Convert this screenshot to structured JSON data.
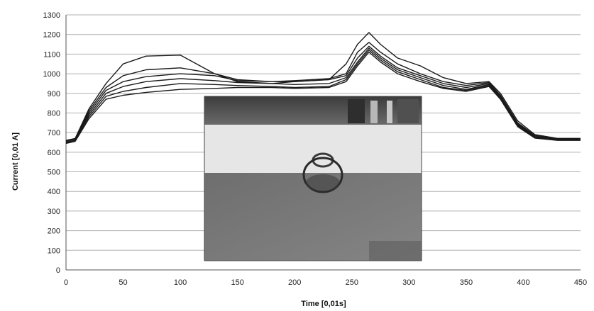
{
  "chart_data": {
    "type": "line",
    "xlabel": "Time [0,01s]",
    "ylabel": "Current [0,01 A]",
    "xlim": [
      0,
      450
    ],
    "ylim": [
      0,
      1300
    ],
    "xticks": [
      0,
      50,
      100,
      150,
      200,
      250,
      300,
      350,
      400,
      450
    ],
    "yticks": [
      0,
      100,
      200,
      300,
      400,
      500,
      600,
      700,
      800,
      900,
      1000,
      1100,
      1200,
      1300
    ],
    "grid": "horizontal",
    "legend": "none",
    "line_color": "#1a1a1a",
    "inset_image": "weld-spot-photo",
    "series": [
      {
        "x": [
          0,
          8,
          20,
          35,
          50,
          70,
          100,
          130,
          150,
          180,
          200,
          230,
          245,
          255,
          265,
          275,
          290,
          310,
          330,
          350,
          370,
          380,
          395,
          410,
          430,
          450
        ],
        "y": [
          660,
          670,
          820,
          950,
          1050,
          1090,
          1095,
          1000,
          960,
          950,
          960,
          970,
          1050,
          1150,
          1210,
          1150,
          1080,
          1040,
          980,
          950,
          960,
          900,
          760,
          690,
          670,
          670
        ]
      },
      {
        "x": [
          0,
          8,
          20,
          35,
          50,
          70,
          100,
          130,
          150,
          180,
          200,
          230,
          245,
          255,
          265,
          275,
          290,
          310,
          330,
          350,
          370,
          380,
          395,
          410,
          430,
          450
        ],
        "y": [
          660,
          670,
          810,
          930,
          990,
          1020,
          1030,
          1000,
          970,
          960,
          965,
          975,
          1000,
          1110,
          1160,
          1110,
          1050,
          1000,
          960,
          940,
          955,
          890,
          750,
          685,
          670,
          670
        ]
      },
      {
        "x": [
          0,
          8,
          20,
          35,
          50,
          70,
          100,
          130,
          150,
          180,
          200,
          230,
          245,
          255,
          265,
          275,
          290,
          310,
          330,
          350,
          370,
          380,
          395,
          410,
          430,
          450
        ],
        "y": [
          655,
          665,
          800,
          915,
          960,
          985,
          1000,
          990,
          965,
          960,
          960,
          970,
          990,
          1080,
          1140,
          1090,
          1030,
          990,
          950,
          930,
          950,
          885,
          745,
          680,
          668,
          668
        ]
      },
      {
        "x": [
          0,
          8,
          20,
          35,
          50,
          70,
          100,
          130,
          150,
          180,
          200,
          230,
          245,
          255,
          265,
          275,
          290,
          310,
          330,
          350,
          370,
          380,
          395,
          410,
          430,
          450
        ],
        "y": [
          650,
          660,
          790,
          900,
          935,
          960,
          975,
          965,
          955,
          950,
          945,
          950,
          980,
          1060,
          1130,
          1080,
          1020,
          980,
          940,
          920,
          945,
          880,
          740,
          678,
          665,
          665
        ]
      },
      {
        "x": [
          0,
          8,
          20,
          35,
          50,
          70,
          100,
          130,
          150,
          180,
          200,
          230,
          245,
          255,
          265,
          275,
          290,
          310,
          330,
          350,
          370,
          380,
          395,
          410,
          430,
          450
        ],
        "y": [
          650,
          658,
          780,
          885,
          910,
          930,
          950,
          945,
          940,
          935,
          930,
          935,
          970,
          1050,
          1120,
          1070,
          1010,
          970,
          930,
          915,
          940,
          875,
          735,
          675,
          663,
          663
        ]
      },
      {
        "x": [
          0,
          8,
          20,
          35,
          50,
          70,
          100,
          130,
          150,
          180,
          200,
          230,
          245,
          255,
          265,
          275,
          290,
          310,
          330,
          350,
          370,
          380,
          395,
          410,
          430,
          450
        ],
        "y": [
          645,
          655,
          770,
          870,
          890,
          905,
          920,
          925,
          930,
          930,
          925,
          930,
          960,
          1040,
          1110,
          1060,
          1000,
          960,
          925,
          910,
          935,
          870,
          730,
          672,
          660,
          660
        ]
      }
    ]
  }
}
